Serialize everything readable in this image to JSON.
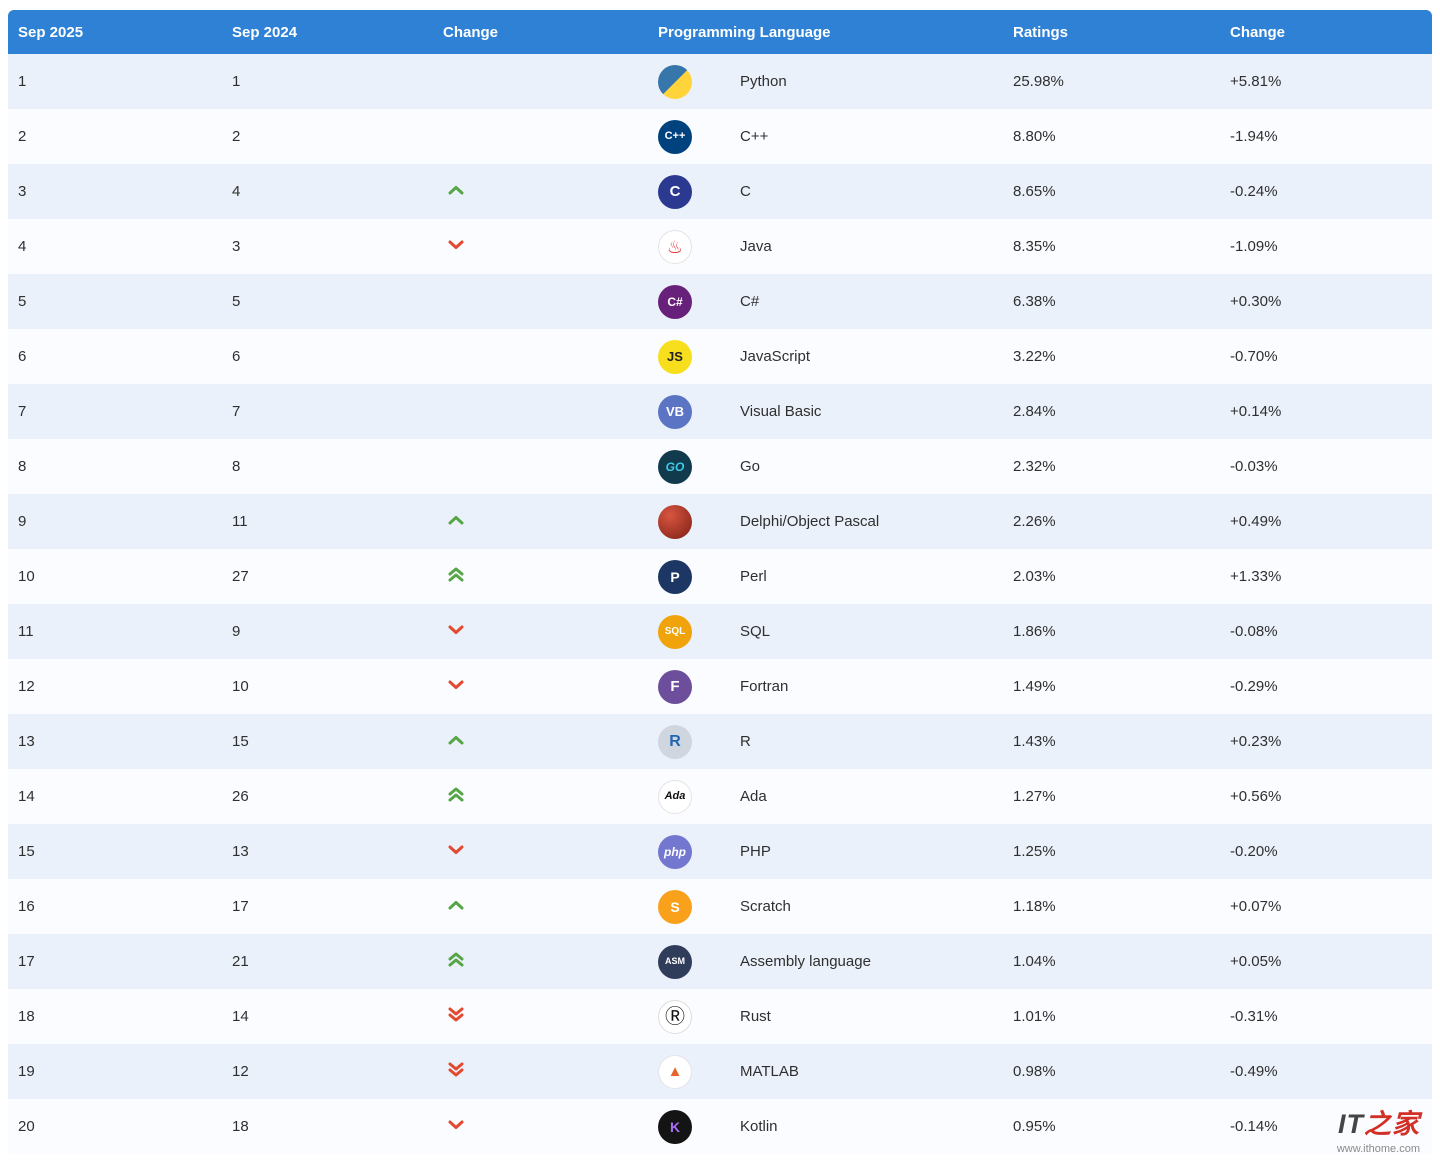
{
  "header": {
    "columns": [
      "Sep 2025",
      "Sep 2024",
      "Change",
      "Programming Language",
      "Ratings",
      "Change"
    ]
  },
  "colors": {
    "header_bg": "#2e81d4",
    "row_bg": "#fbfcff",
    "row_alt_bg": "#ebf1fa",
    "up": "#56a546",
    "down": "#e2492f",
    "text": "#2f2f2f"
  },
  "watermark": {
    "brand_prefix": "IT",
    "brand_suffix": "之家",
    "url": "www.ithome.com"
  },
  "rows": [
    {
      "rank_new": "1",
      "rank_old": "1",
      "change": "none",
      "language": "Python",
      "ratings": "25.98%",
      "delta": "+5.81%",
      "icon": {
        "name": "python-icon",
        "bg": "linear-gradient(135deg,#3776ab 50%,#ffd43b 50%)",
        "fg": "#ffffff",
        "text": "",
        "fs": 12
      }
    },
    {
      "rank_new": "2",
      "rank_old": "2",
      "change": "none",
      "language": "C++",
      "ratings": "8.80%",
      "delta": "-1.94%",
      "icon": {
        "name": "cpp-icon",
        "bg": "#00427e",
        "fg": "#ffffff",
        "text": "C++",
        "fs": 11,
        "bold": true
      }
    },
    {
      "rank_new": "3",
      "rank_old": "4",
      "change": "up",
      "language": "C",
      "ratings": "8.65%",
      "delta": "-0.24%",
      "icon": {
        "name": "c-icon",
        "bg": "#2b3990",
        "fg": "#ffffff",
        "text": "C",
        "fs": 15,
        "bold": true
      }
    },
    {
      "rank_new": "4",
      "rank_old": "3",
      "change": "down",
      "language": "Java",
      "ratings": "8.35%",
      "delta": "-1.09%",
      "icon": {
        "name": "java-icon",
        "bg": "#ffffff",
        "fg": "#ea2d2e",
        "text": "♨",
        "fs": 18,
        "border": "#e3e3e3"
      }
    },
    {
      "rank_new": "5",
      "rank_old": "5",
      "change": "none",
      "language": "C#",
      "ratings": "6.38%",
      "delta": "+0.30%",
      "icon": {
        "name": "csharp-icon",
        "bg": "#68217a",
        "fg": "#ffffff",
        "text": "C#",
        "fs": 12,
        "bold": true
      }
    },
    {
      "rank_new": "6",
      "rank_old": "6",
      "change": "none",
      "language": "JavaScript",
      "ratings": "3.22%",
      "delta": "-0.70%",
      "icon": {
        "name": "javascript-icon",
        "bg": "#f7df1e",
        "fg": "#222222",
        "text": "JS",
        "fs": 13,
        "bold": true
      }
    },
    {
      "rank_new": "7",
      "rank_old": "7",
      "change": "none",
      "language": "Visual Basic",
      "ratings": "2.84%",
      "delta": "+0.14%",
      "icon": {
        "name": "visual-basic-icon",
        "bg": "#5b74c4",
        "fg": "#ffffff",
        "text": "VB",
        "fs": 13,
        "bold": true
      }
    },
    {
      "rank_new": "8",
      "rank_old": "8",
      "change": "none",
      "language": "Go",
      "ratings": "2.32%",
      "delta": "-0.03%",
      "icon": {
        "name": "go-icon",
        "bg": "#123a4d",
        "fg": "#3ecbe8",
        "text": "GO",
        "fs": 12,
        "bold": true,
        "italic": true
      }
    },
    {
      "rank_new": "9",
      "rank_old": "11",
      "change": "up",
      "language": "Delphi/Object Pascal",
      "ratings": "2.26%",
      "delta": "+0.49%",
      "icon": {
        "name": "delphi-icon",
        "bg": "radial-gradient(circle at 35% 30%,#d8553f,#7c1f16)",
        "fg": "#ffffff",
        "text": "",
        "fs": 12
      }
    },
    {
      "rank_new": "10",
      "rank_old": "27",
      "change": "up2",
      "language": "Perl",
      "ratings": "2.03%",
      "delta": "+1.33%",
      "icon": {
        "name": "perl-icon",
        "bg": "#1c3763",
        "fg": "#ffffff",
        "text": "P",
        "fs": 14,
        "bold": true
      }
    },
    {
      "rank_new": "11",
      "rank_old": "9",
      "change": "down",
      "language": "SQL",
      "ratings": "1.86%",
      "delta": "-0.08%",
      "icon": {
        "name": "sql-icon",
        "bg": "#f0a30a",
        "fg": "#ffffff",
        "text": "SQL",
        "fs": 10,
        "bold": true
      }
    },
    {
      "rank_new": "12",
      "rank_old": "10",
      "change": "down",
      "language": "Fortran",
      "ratings": "1.49%",
      "delta": "-0.29%",
      "icon": {
        "name": "fortran-icon",
        "bg": "#6d4e9c",
        "fg": "#ffffff",
        "text": "F",
        "fs": 15,
        "bold": true
      }
    },
    {
      "rank_new": "13",
      "rank_old": "15",
      "change": "up",
      "language": "R",
      "ratings": "1.43%",
      "delta": "+0.23%",
      "icon": {
        "name": "r-icon",
        "bg": "#cfd6e0",
        "fg": "#2266b2",
        "text": "R",
        "fs": 16,
        "bold": true
      }
    },
    {
      "rank_new": "14",
      "rank_old": "26",
      "change": "up2",
      "language": "Ada",
      "ratings": "1.27%",
      "delta": "+0.56%",
      "icon": {
        "name": "ada-icon",
        "bg": "#ffffff",
        "fg": "#111111",
        "text": "Ada",
        "fs": 11,
        "bold": true,
        "italic": true,
        "border": "#e3e3e3"
      }
    },
    {
      "rank_new": "15",
      "rank_old": "13",
      "change": "down",
      "language": "PHP",
      "ratings": "1.25%",
      "delta": "-0.20%",
      "icon": {
        "name": "php-icon",
        "bg": "#7377cf",
        "fg": "#ffffff",
        "text": "php",
        "fs": 12,
        "bold": true,
        "italic": true
      }
    },
    {
      "rank_new": "16",
      "rank_old": "17",
      "change": "up",
      "language": "Scratch",
      "ratings": "1.18%",
      "delta": "+0.07%",
      "icon": {
        "name": "scratch-icon",
        "bg": "#f9a11b",
        "fg": "#ffffff",
        "text": "S",
        "fs": 14,
        "bold": true
      }
    },
    {
      "rank_new": "17",
      "rank_old": "21",
      "change": "up2",
      "language": "Assembly language",
      "ratings": "1.04%",
      "delta": "+0.05%",
      "icon": {
        "name": "assembly-icon",
        "bg": "#303d5a",
        "fg": "#ffffff",
        "text": "ASM",
        "fs": 9,
        "bold": true
      }
    },
    {
      "rank_new": "18",
      "rank_old": "14",
      "change": "down2",
      "language": "Rust",
      "ratings": "1.01%",
      "delta": "-0.31%",
      "icon": {
        "name": "rust-icon",
        "bg": "#ffffff",
        "fg": "#111111",
        "text": "Ⓡ",
        "fs": 20,
        "border": "#dddddd"
      }
    },
    {
      "rank_new": "19",
      "rank_old": "12",
      "change": "down2",
      "language": "MATLAB",
      "ratings": "0.98%",
      "delta": "-0.49%",
      "icon": {
        "name": "matlab-icon",
        "bg": "#ffffff",
        "fg": "#e8642d",
        "text": "▲",
        "fs": 15,
        "border": "#e3e3e3"
      }
    },
    {
      "rank_new": "20",
      "rank_old": "18",
      "change": "down",
      "language": "Kotlin",
      "ratings": "0.95%",
      "delta": "-0.14%",
      "icon": {
        "name": "kotlin-icon",
        "bg": "#141414",
        "fg": "#a96ef5",
        "text": "K",
        "fs": 14,
        "bold": true
      }
    }
  ],
  "chart_data": {
    "type": "table",
    "columns": [
      "Sep 2025",
      "Sep 2024",
      "Change",
      "Programming Language",
      "Ratings",
      "Change"
    ],
    "rows": [
      [
        "1",
        "1",
        "",
        "Python",
        "25.98%",
        "+5.81%"
      ],
      [
        "2",
        "2",
        "",
        "C++",
        "8.80%",
        "-1.94%"
      ],
      [
        "3",
        "4",
        "up",
        "C",
        "8.65%",
        "-0.24%"
      ],
      [
        "4",
        "3",
        "down",
        "Java",
        "8.35%",
        "-1.09%"
      ],
      [
        "5",
        "5",
        "",
        "C#",
        "6.38%",
        "+0.30%"
      ],
      [
        "6",
        "6",
        "",
        "JavaScript",
        "3.22%",
        "-0.70%"
      ],
      [
        "7",
        "7",
        "",
        "Visual Basic",
        "2.84%",
        "+0.14%"
      ],
      [
        "8",
        "8",
        "",
        "Go",
        "2.32%",
        "-0.03%"
      ],
      [
        "9",
        "11",
        "up",
        "Delphi/Object Pascal",
        "2.26%",
        "+0.49%"
      ],
      [
        "10",
        "27",
        "up-double",
        "Perl",
        "2.03%",
        "+1.33%"
      ],
      [
        "11",
        "9",
        "down",
        "SQL",
        "1.86%",
        "-0.08%"
      ],
      [
        "12",
        "10",
        "down",
        "Fortran",
        "1.49%",
        "-0.29%"
      ],
      [
        "13",
        "15",
        "up",
        "R",
        "1.43%",
        "+0.23%"
      ],
      [
        "14",
        "26",
        "up-double",
        "Ada",
        "1.27%",
        "+0.56%"
      ],
      [
        "15",
        "13",
        "down",
        "PHP",
        "1.25%",
        "-0.20%"
      ],
      [
        "16",
        "17",
        "up",
        "Scratch",
        "1.18%",
        "+0.07%"
      ],
      [
        "17",
        "21",
        "up-double",
        "Assembly language",
        "1.04%",
        "+0.05%"
      ],
      [
        "18",
        "14",
        "down-double",
        "Rust",
        "1.01%",
        "-0.31%"
      ],
      [
        "19",
        "12",
        "down-double",
        "MATLAB",
        "0.98%",
        "-0.49%"
      ],
      [
        "20",
        "18",
        "down",
        "Kotlin",
        "0.95%",
        "-0.14%"
      ]
    ]
  }
}
